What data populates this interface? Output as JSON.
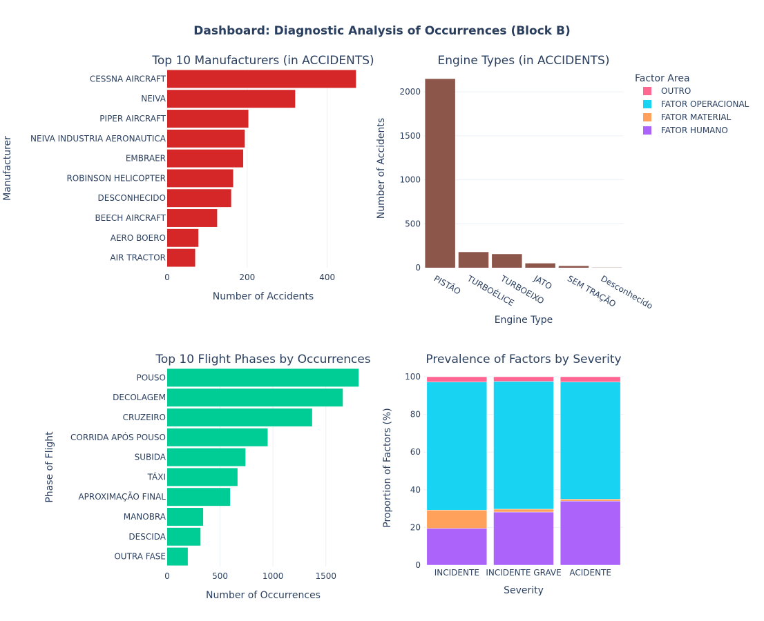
{
  "title": "Dashboard: Diagnostic Analysis of Occurrences (Block B)",
  "colors": {
    "text": "#2a3f5f",
    "grid": "#ebf0f8",
    "manufacturers_bar": "#d62728",
    "engine_bar": "#8c564b",
    "phases_bar": "#00cc96"
  },
  "legend": {
    "title": "Factor Area",
    "placement": "top-right",
    "items": [
      {
        "name": "OUTRO",
        "color": "#ff6692"
      },
      {
        "name": "FATOR OPERACIONAL",
        "color": "#19d3f3"
      },
      {
        "name": "FATOR MATERIAL",
        "color": "#ffa15a"
      },
      {
        "name": "FATOR HUMANO",
        "color": "#ab63fa"
      }
    ]
  },
  "chart_data": [
    {
      "id": "manufacturers",
      "type": "bar",
      "orientation": "horizontal",
      "title": "Top 10 Manufacturers (in ACCIDENTS)",
      "xlabel": "Number of Accidents",
      "ylabel": "Manufacturer",
      "categories": [
        "CESSNA AIRCRAFT",
        "NEIVA",
        "PIPER AIRCRAFT",
        "NEIVA INDUSTRIA AERONAUTICA",
        "EMBRAER",
        "ROBINSON HELICOPTER",
        "DESCONHECIDO",
        "BEECH AIRCRAFT",
        "AERO BOERO",
        "AIR TRACTOR"
      ],
      "values": [
        472,
        320,
        203,
        194,
        190,
        165,
        160,
        125,
        78,
        70
      ],
      "xlim": [
        0,
        480
      ],
      "xticks": [
        "0",
        "200",
        "400"
      ],
      "grid": true
    },
    {
      "id": "engine_types",
      "type": "bar",
      "orientation": "vertical",
      "title": "Engine Types (in ACCIDENTS)",
      "xlabel": "Engine Type",
      "ylabel": "Number of Accidents",
      "categories": [
        "PISTÃO",
        "TURBOÉLICE",
        "TURBOEIXO",
        "JATO",
        "SEM TRAÇÃO",
        "Desconhecido"
      ],
      "values": [
        2148,
        178,
        155,
        50,
        20,
        2
      ],
      "ylim": [
        0,
        2260
      ],
      "yticks": [
        "0",
        "500",
        "1000",
        "1500",
        "2000"
      ],
      "grid": true
    },
    {
      "id": "flight_phases",
      "type": "bar",
      "orientation": "horizontal",
      "title": "Top 10 Flight Phases by Occurrences",
      "xlabel": "Number of Occurrences",
      "ylabel": "Phase of Flight",
      "categories": [
        "POUSO",
        "DECOLAGEM",
        "CRUZEIRO",
        "CORRIDA APÓS POUSO",
        "SUBIDA",
        "TÁXI",
        "APROXIMAÇÃO FINAL",
        "MANOBRA",
        "DESCIDA",
        "OUTRA FASE"
      ],
      "values": [
        1810,
        1660,
        1370,
        950,
        740,
        665,
        595,
        340,
        315,
        195
      ],
      "xlim": [
        0,
        1815
      ],
      "xticks": [
        "0",
        "500",
        "1000",
        "1500"
      ],
      "grid": true
    },
    {
      "id": "factors_by_severity",
      "type": "bar",
      "stacked": true,
      "title": "Prevalence of Factors by Severity",
      "xlabel": "Severity",
      "ylabel": "Proportion of Factors (%)",
      "categories": [
        "INCIDENTE",
        "INCIDENTE GRAVE",
        "ACIDENTE"
      ],
      "series": [
        {
          "name": "FATOR HUMANO",
          "values": [
            19.5,
            28.2,
            34.0
          ]
        },
        {
          "name": "FATOR MATERIAL",
          "values": [
            9.7,
            1.5,
            1.0
          ]
        },
        {
          "name": "FATOR OPERACIONAL",
          "values": [
            68.0,
            67.8,
            62.2
          ]
        },
        {
          "name": "OUTRO",
          "values": [
            2.8,
            2.5,
            2.8
          ]
        }
      ],
      "ylim": [
        0,
        100
      ],
      "yticks": [
        "0",
        "20",
        "40",
        "60",
        "80",
        "100"
      ],
      "grid": true
    }
  ]
}
